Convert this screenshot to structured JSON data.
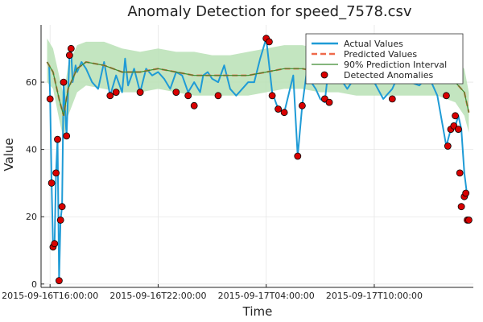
{
  "chart_data": {
    "type": "line",
    "title": "Anomaly Detection for speed_7578.csv",
    "xlabel": "Time",
    "ylabel": "Value",
    "xlim": [
      "2015-09-16 15:30",
      "2015-09-17 15:30"
    ],
    "ylim": [
      -1,
      77
    ],
    "grid": true,
    "legend_position": "top-right",
    "x_ticks": [
      {
        "t": "2015-09-16 16:00",
        "label": "2015-09-16T16:00:00"
      },
      {
        "t": "2015-09-16 22:00",
        "label": "2015-09-16T22:00:00"
      },
      {
        "t": "2015-09-17 04:00",
        "label": "2015-09-17T04:00:00"
      },
      {
        "t": "2015-09-17 10:00",
        "label": "2015-09-17T10:00:00"
      }
    ],
    "y_ticks": [
      0,
      20,
      40,
      60
    ],
    "colors": {
      "actual": "#1f9bd6",
      "predicted": "#ef6a4b",
      "interval_fill": "#b9e0b5",
      "interval_line": "#3b8a2e",
      "anomaly_fill": "#d90000",
      "anomaly_edge": "#000000"
    },
    "legend": [
      {
        "key": "actual",
        "label": "Actual Values"
      },
      {
        "key": "predicted",
        "label": "Predicted Values"
      },
      {
        "key": "interval",
        "label": "90% Prediction Interval"
      },
      {
        "key": "anomaly",
        "label": "Detected Anomalies"
      }
    ],
    "series": [
      {
        "name": "Actual Values",
        "x": [
          "2015-09-16 15:50",
          "2015-09-16 15:57",
          "2015-09-16 16:00",
          "2015-09-16 16:05",
          "2015-09-16 16:10",
          "2015-09-16 16:15",
          "2015-09-16 16:20",
          "2015-09-16 16:25",
          "2015-09-16 16:30",
          "2015-09-16 16:35",
          "2015-09-16 16:40",
          "2015-09-16 16:45",
          "2015-09-16 16:55",
          "2015-09-16 17:00",
          "2015-09-16 17:05",
          "2015-09-16 17:10",
          "2015-09-16 17:15",
          "2015-09-16 17:20",
          "2015-09-16 17:25",
          "2015-09-16 17:30",
          "2015-09-16 17:45",
          "2015-09-16 18:00",
          "2015-09-16 18:20",
          "2015-09-16 18:40",
          "2015-09-16 19:00",
          "2015-09-16 19:20",
          "2015-09-16 19:40",
          "2015-09-16 20:00",
          "2015-09-16 20:10",
          "2015-09-16 20:20",
          "2015-09-16 20:40",
          "2015-09-16 21:00",
          "2015-09-16 21:20",
          "2015-09-16 21:40",
          "2015-09-16 22:00",
          "2015-09-16 22:20",
          "2015-09-16 22:40",
          "2015-09-16 23:00",
          "2015-09-16 23:20",
          "2015-09-16 23:40",
          "2015-09-17 00:00",
          "2015-09-17 00:20",
          "2015-09-17 00:30",
          "2015-09-17 00:45",
          "2015-09-17 01:00",
          "2015-09-17 01:20",
          "2015-09-17 01:40",
          "2015-09-17 02:00",
          "2015-09-17 02:20",
          "2015-09-17 02:40",
          "2015-09-17 03:00",
          "2015-09-17 03:20",
          "2015-09-17 03:40",
          "2015-09-17 04:00",
          "2015-09-17 04:20",
          "2015-09-17 04:40",
          "2015-09-17 05:00",
          "2015-09-17 05:30",
          "2015-09-17 05:45",
          "2015-09-17 06:00",
          "2015-09-17 06:15",
          "2015-09-17 06:30",
          "2015-09-17 06:45",
          "2015-09-17 07:00",
          "2015-09-17 07:15",
          "2015-09-17 07:30",
          "2015-09-17 07:45",
          "2015-09-17 08:00",
          "2015-09-17 08:30",
          "2015-09-17 09:00",
          "2015-09-17 09:30",
          "2015-09-17 10:00",
          "2015-09-17 10:30",
          "2015-09-17 11:00",
          "2015-09-17 11:30",
          "2015-09-17 12:00",
          "2015-09-17 12:30",
          "2015-09-17 13:00",
          "2015-09-17 13:30",
          "2015-09-17 14:00",
          "2015-09-17 14:15",
          "2015-09-17 14:30",
          "2015-09-17 14:40",
          "2015-09-17 14:50",
          "2015-09-17 15:00",
          "2015-09-17 15:10"
        ],
        "y": [
          66,
          65,
          56,
          30,
          11,
          12,
          33,
          43,
          1,
          19,
          23,
          60,
          44,
          57,
          68,
          70,
          60,
          62,
          65,
          63,
          66,
          64,
          60,
          58,
          66,
          56,
          62,
          57,
          67,
          59,
          64,
          57,
          64,
          62,
          63,
          61,
          58,
          63,
          62,
          57,
          60,
          57,
          62,
          63,
          61,
          60,
          65,
          58,
          56,
          58,
          60,
          60,
          67,
          73,
          57,
          52,
          51,
          62,
          38,
          53,
          63,
          60,
          58,
          55,
          54,
          66,
          60,
          62,
          58,
          62,
          60,
          60,
          55,
          58,
          64,
          60,
          59,
          62,
          56,
          41,
          46,
          47,
          50,
          46,
          33,
          26
        ]
      },
      {
        "name": "Predicted Values",
        "x": [
          "2015-09-16 15:50",
          "2015-09-16 16:10",
          "2015-09-16 16:30",
          "2015-09-16 16:45",
          "2015-09-16 17:00",
          "2015-09-16 17:30",
          "2015-09-16 18:00",
          "2015-09-16 19:00",
          "2015-09-16 20:00",
          "2015-09-16 21:00",
          "2015-09-16 22:00",
          "2015-09-16 23:00",
          "2015-09-17 00:00",
          "2015-09-17 01:00",
          "2015-09-17 02:00",
          "2015-09-17 03:00",
          "2015-09-17 04:00",
          "2015-09-17 05:00",
          "2015-09-17 06:00",
          "2015-09-17 07:00",
          "2015-09-17 08:00",
          "2015-09-17 09:00",
          "2015-09-17 10:00",
          "2015-09-17 11:00",
          "2015-09-17 12:00",
          "2015-09-17 13:00",
          "2015-09-17 13:30",
          "2015-09-17 14:00",
          "2015-09-17 14:30",
          "2015-09-17 15:00",
          "2015-09-17 15:15"
        ],
        "y": [
          66,
          63,
          55,
          50,
          58,
          64,
          66,
          65,
          63,
          63,
          64,
          63,
          62,
          62,
          62,
          62,
          63,
          64,
          64,
          63,
          63,
          62,
          62,
          62,
          62,
          62,
          62,
          61,
          60,
          57,
          51
        ]
      },
      {
        "name": "90% Prediction Interval",
        "x": [
          "2015-09-16 15:50",
          "2015-09-16 16:10",
          "2015-09-16 16:30",
          "2015-09-16 16:45",
          "2015-09-16 17:00",
          "2015-09-16 17:30",
          "2015-09-16 18:00",
          "2015-09-16 19:00",
          "2015-09-16 20:00",
          "2015-09-16 21:00",
          "2015-09-16 22:00",
          "2015-09-16 23:00",
          "2015-09-17 00:00",
          "2015-09-17 01:00",
          "2015-09-17 02:00",
          "2015-09-17 03:00",
          "2015-09-17 04:00",
          "2015-09-17 05:00",
          "2015-09-17 06:00",
          "2015-09-17 07:00",
          "2015-09-17 08:00",
          "2015-09-17 09:00",
          "2015-09-17 10:00",
          "2015-09-17 11:00",
          "2015-09-17 12:00",
          "2015-09-17 13:00",
          "2015-09-17 13:30",
          "2015-09-17 14:00",
          "2015-09-17 14:30",
          "2015-09-17 15:00",
          "2015-09-17 15:15"
        ],
        "lower": [
          60,
          58,
          49,
          43,
          50,
          57,
          59,
          58,
          57,
          57,
          58,
          57,
          56,
          56,
          56,
          56,
          57,
          58,
          58,
          57,
          57,
          56,
          56,
          56,
          56,
          56,
          56,
          55,
          54,
          50,
          45
        ],
        "upper": [
          73,
          70,
          62,
          56,
          65,
          71,
          72,
          72,
          70,
          69,
          70,
          69,
          69,
          68,
          68,
          69,
          70,
          71,
          71,
          70,
          70,
          69,
          68,
          68,
          68,
          68,
          68,
          67,
          66,
          64,
          57
        ]
      }
    ],
    "anomalies": {
      "name": "Detected Anomalies",
      "x": [
        "2015-09-16 16:00",
        "2015-09-16 16:05",
        "2015-09-16 16:10",
        "2015-09-16 16:15",
        "2015-09-16 16:20",
        "2015-09-16 16:25",
        "2015-09-16 16:30",
        "2015-09-16 16:35",
        "2015-09-16 16:40",
        "2015-09-16 16:45",
        "2015-09-16 16:55",
        "2015-09-16 17:05",
        "2015-09-16 17:10",
        "2015-09-16 19:20",
        "2015-09-16 19:40",
        "2015-09-16 21:00",
        "2015-09-16 23:00",
        "2015-09-16 23:40",
        "2015-09-17 00:00",
        "2015-09-17 01:20",
        "2015-09-17 04:00",
        "2015-09-17 04:10",
        "2015-09-17 04:20",
        "2015-09-17 04:40",
        "2015-09-17 05:00",
        "2015-09-17 05:45",
        "2015-09-17 06:00",
        "2015-09-17 07:15",
        "2015-09-17 07:30",
        "2015-09-17 11:00",
        "2015-09-17 14:00",
        "2015-09-17 14:05",
        "2015-09-17 14:15",
        "2015-09-17 14:25",
        "2015-09-17 14:30",
        "2015-09-17 14:40",
        "2015-09-17 14:45",
        "2015-09-17 14:50",
        "2015-09-17 15:00",
        "2015-09-17 15:05",
        "2015-09-17 15:10",
        "2015-09-17 15:15"
      ],
      "y": [
        55,
        30,
        11,
        12,
        33,
        43,
        1,
        19,
        23,
        60,
        44,
        68,
        70,
        56,
        57,
        57,
        57,
        56,
        53,
        56,
        73,
        72,
        56,
        52,
        51,
        38,
        53,
        55,
        54,
        55,
        56,
        41,
        46,
        47,
        50,
        46,
        33,
        23,
        26,
        27,
        19,
        19
      ]
    }
  }
}
